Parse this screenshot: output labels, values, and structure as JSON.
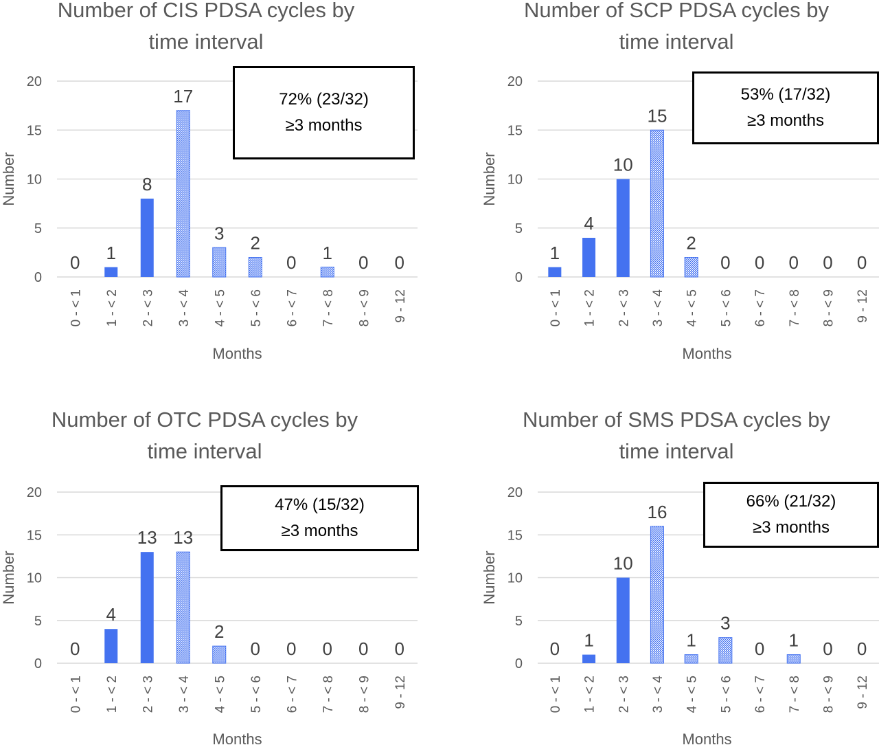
{
  "bar_color": "#4472f0",
  "chart_data": [
    {
      "type": "bar",
      "title_lines": [
        "Number of CIS PDSA cycles by",
        "time interval"
      ],
      "categories": [
        "0 - < 1",
        "1 - < 2",
        "2 - < 3",
        "3 - < 4",
        "4 - < 5",
        "5 - < 6",
        "6 - < 7",
        "7 - < 8",
        "8 - < 9",
        "9 - 12"
      ],
      "values": [
        0,
        1,
        8,
        17,
        3,
        2,
        0,
        1,
        0,
        0
      ],
      "patterned": [
        false,
        false,
        false,
        true,
        true,
        true,
        true,
        true,
        true,
        true
      ],
      "xlabel": "Months",
      "ylabel": "Number",
      "ylim": [
        0,
        20
      ],
      "yticks": [
        0,
        5,
        10,
        15,
        20
      ],
      "grid": true,
      "annotation": {
        "line1": "72% (23/32)",
        "line2": "≥3 months"
      }
    },
    {
      "type": "bar",
      "title_lines": [
        "Number of SCP PDSA cycles by",
        "time interval"
      ],
      "categories": [
        "0 - < 1",
        "1 - < 2",
        "2 - < 3",
        "3 - < 4",
        "4 - < 5",
        "5 - < 6",
        "6 - < 7",
        "7 - < 8",
        "8 - < 9",
        "9 - 12"
      ],
      "values": [
        1,
        4,
        10,
        15,
        2,
        0,
        0,
        0,
        0,
        0
      ],
      "patterned": [
        false,
        false,
        false,
        true,
        true,
        true,
        true,
        true,
        true,
        true
      ],
      "xlabel": "Months",
      "ylabel": "Number",
      "ylim": [
        0,
        20
      ],
      "yticks": [
        0,
        5,
        10,
        15,
        20
      ],
      "grid": true,
      "annotation": {
        "line1": "53% (17/32)",
        "line2": "≥3 months"
      }
    },
    {
      "type": "bar",
      "title_lines": [
        "Number of OTC PDSA cycles by",
        "time interval"
      ],
      "categories": [
        "0 - < 1",
        "1 - < 2",
        "2 - < 3",
        "3 - < 4",
        "4 - < 5",
        "5 - < 6",
        "6 - < 7",
        "7 - < 8",
        "8 - < 9",
        "9 - 12"
      ],
      "values": [
        0,
        4,
        13,
        13,
        2,
        0,
        0,
        0,
        0,
        0
      ],
      "patterned": [
        false,
        false,
        false,
        true,
        true,
        true,
        true,
        true,
        true,
        true
      ],
      "xlabel": "Months",
      "ylabel": "Number",
      "ylim": [
        0,
        20
      ],
      "yticks": [
        0,
        5,
        10,
        15,
        20
      ],
      "grid": true,
      "annotation": {
        "line1": "47% (15/32)",
        "line2": "≥3 months"
      }
    },
    {
      "type": "bar",
      "title_lines": [
        "Number of SMS PDSA cycles by",
        "time interval"
      ],
      "categories": [
        "0 - < 1",
        "1 - < 2",
        "2 - < 3",
        "3 - < 4",
        "4 - < 5",
        "5 - < 6",
        "6 - < 7",
        "7 - < 8",
        "8 - < 9",
        "9 - 12"
      ],
      "values": [
        0,
        1,
        10,
        16,
        1,
        3,
        0,
        1,
        0,
        0
      ],
      "patterned": [
        false,
        false,
        false,
        true,
        true,
        true,
        true,
        true,
        true,
        true
      ],
      "xlabel": "Months",
      "ylabel": "Number",
      "ylim": [
        0,
        20
      ],
      "yticks": [
        0,
        5,
        10,
        15,
        20
      ],
      "grid": true,
      "annotation": {
        "line1": "66% (21/32)",
        "line2": "≥3 months"
      }
    }
  ]
}
